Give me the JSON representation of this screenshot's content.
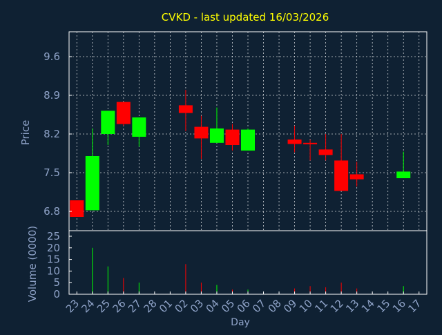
{
  "chart_data": {
    "type": "candlestick",
    "title": "CVKD - last updated 16/03/2026",
    "xlabel": "Day",
    "colors": {
      "background": "#0f2133",
      "title": "#ffff00",
      "axis_text": "#8fa3c8",
      "grid": "#ffffff",
      "up": "#00ff00",
      "down": "#ff0000"
    },
    "x_ticks": [
      "23",
      "24",
      "25",
      "26",
      "27",
      "28",
      "01",
      "02",
      "03",
      "04",
      "05",
      "06",
      "07",
      "08",
      "09",
      "10",
      "11",
      "12",
      "13",
      "14",
      "15",
      "16",
      "17"
    ],
    "price_panel": {
      "ylabel": "Price",
      "ylim": [
        6.45,
        10.05
      ],
      "y_ticks": [
        "6.8",
        "7.5",
        "8.2",
        "8.9",
        "9.6"
      ],
      "y_values": [
        6.8,
        7.5,
        8.2,
        8.9,
        9.6
      ],
      "grid": true
    },
    "volume_panel": {
      "ylabel": "Volume (0000)",
      "ylim": [
        0,
        25
      ],
      "y_ticks": [
        "0",
        "5",
        "10",
        "15",
        "20",
        "25"
      ],
      "y_values": [
        0,
        5,
        10,
        15,
        20,
        25
      ],
      "grid": false
    },
    "candles": [
      {
        "day": "23",
        "open": 7.0,
        "high": 7.0,
        "low": 6.7,
        "close": 6.7,
        "volume": 0,
        "color": "down"
      },
      {
        "day": "24",
        "open": 6.82,
        "high": 8.3,
        "low": 6.82,
        "close": 7.8,
        "volume": 20,
        "color": "up"
      },
      {
        "day": "25",
        "open": 8.2,
        "high": 8.62,
        "low": 8.0,
        "close": 8.62,
        "volume": 12,
        "color": "up"
      },
      {
        "day": "26",
        "open": 8.78,
        "high": 8.78,
        "low": 8.35,
        "close": 8.38,
        "volume": 7,
        "color": "down"
      },
      {
        "day": "27",
        "open": 8.15,
        "high": 8.5,
        "low": 7.97,
        "close": 8.5,
        "volume": 5,
        "color": "up"
      },
      {
        "day": "02",
        "open": 8.72,
        "high": 9.0,
        "low": 8.25,
        "close": 8.58,
        "volume": 13,
        "color": "down"
      },
      {
        "day": "03",
        "open": 8.33,
        "high": 8.53,
        "low": 7.75,
        "close": 8.12,
        "volume": 5,
        "color": "down"
      },
      {
        "day": "04",
        "open": 8.04,
        "high": 8.68,
        "low": 8.04,
        "close": 8.3,
        "volume": 4,
        "color": "up"
      },
      {
        "day": "05",
        "open": 8.28,
        "high": 8.38,
        "low": 7.9,
        "close": 8.0,
        "volume": 2,
        "color": "down"
      },
      {
        "day": "06",
        "open": 7.9,
        "high": 8.3,
        "low": 7.9,
        "close": 8.28,
        "volume": 2,
        "color": "up"
      },
      {
        "day": "09",
        "open": 8.1,
        "high": 8.35,
        "low": 7.87,
        "close": 8.02,
        "volume": 2.5,
        "color": "down"
      },
      {
        "day": "10",
        "open": 8.04,
        "high": 8.1,
        "low": 7.72,
        "close": 8.02,
        "volume": 3.5,
        "color": "down"
      },
      {
        "day": "11",
        "open": 7.92,
        "high": 8.2,
        "low": 7.72,
        "close": 7.82,
        "volume": 3,
        "color": "down"
      },
      {
        "day": "12",
        "open": 7.72,
        "high": 8.2,
        "low": 7.17,
        "close": 7.17,
        "volume": 5,
        "color": "down"
      },
      {
        "day": "13",
        "open": 7.47,
        "high": 7.7,
        "low": 7.25,
        "close": 7.38,
        "volume": 2.5,
        "color": "down"
      },
      {
        "day": "16",
        "open": 7.4,
        "high": 7.88,
        "low": 7.4,
        "close": 7.52,
        "volume": 3.5,
        "color": "up"
      }
    ]
  }
}
